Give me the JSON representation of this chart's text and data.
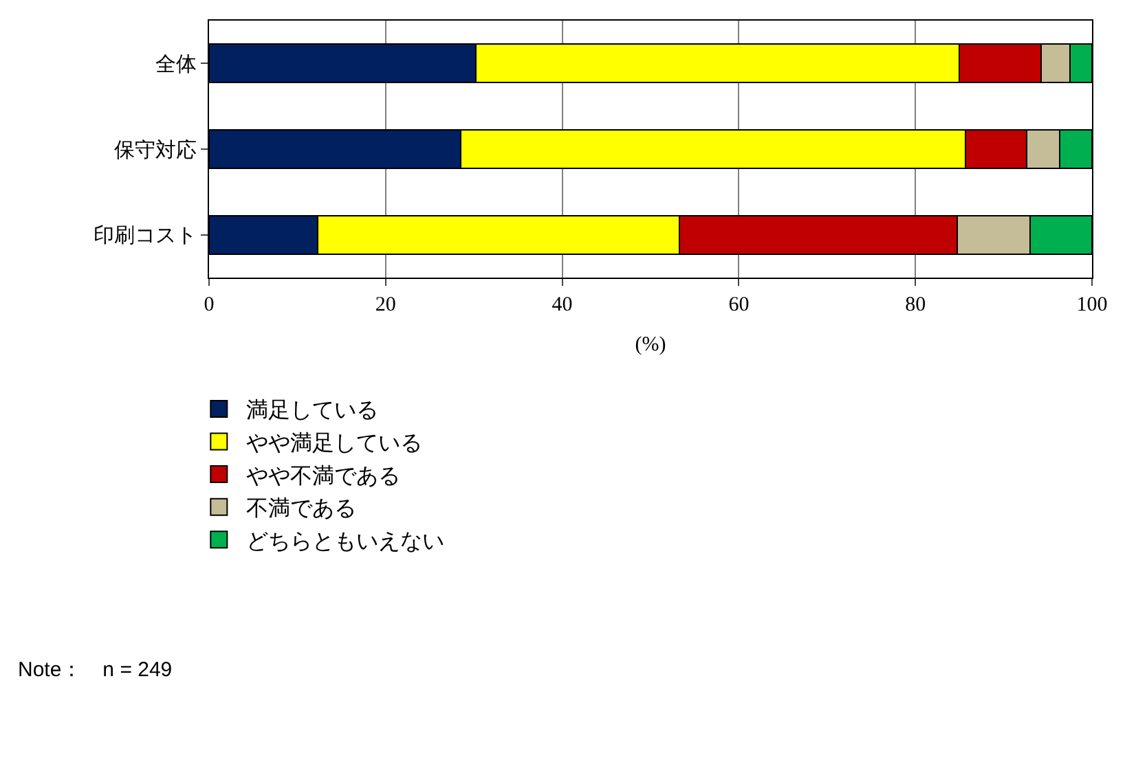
{
  "chart_data": {
    "type": "bar",
    "orientation": "horizontal",
    "stacked": true,
    "categories": [
      "全体",
      "保守対応",
      "印刷コスト"
    ],
    "series": [
      {
        "name": "満足している",
        "color": "#002060",
        "values": [
          30.2,
          28.5,
          12.3
        ]
      },
      {
        "name": "やや満足している",
        "color": "#ffff00",
        "values": [
          54.8,
          57.2,
          41.0
        ]
      },
      {
        "name": "やや不満である",
        "color": "#c00000",
        "values": [
          9.2,
          6.9,
          31.4
        ]
      },
      {
        "name": "不満である",
        "color": "#c4bd97",
        "values": [
          3.3,
          3.7,
          8.3
        ]
      },
      {
        "name": "どちらともいえない",
        "color": "#00b050",
        "values": [
          2.5,
          3.7,
          7.0
        ]
      }
    ],
    "xlabel": "(%)",
    "xlim": [
      0,
      100
    ],
    "xticks": [
      0,
      20,
      40,
      60,
      80,
      100
    ],
    "grid": "x",
    "legend": "bottom left",
    "annotations": [
      "Note：　n = 249"
    ]
  }
}
